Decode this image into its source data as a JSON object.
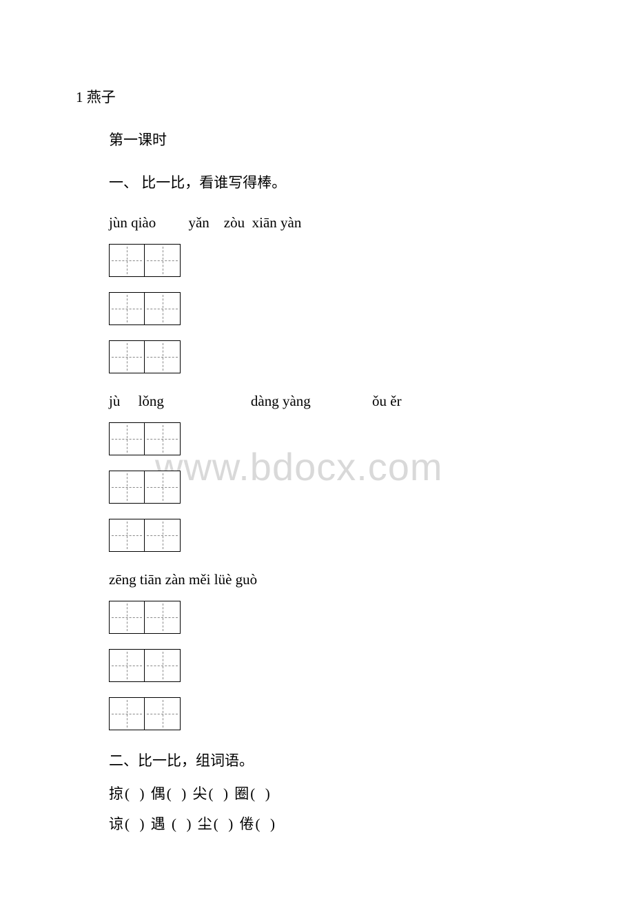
{
  "title": "1 燕子",
  "subtitle": "第一课时",
  "section1": {
    "instruction": "一、 比一比，看谁写得棒。",
    "pinyin_row1": "jùn qiào   yǎn zòu xiān yàn",
    "pinyin_row2": "jù  lǒng      dàng yàng     ǒu ěr",
    "pinyin_row3": "zēng tiān zàn měi lüè guò"
  },
  "section2": {
    "instruction": "二、比一比，组词语。",
    "line1": "掠( ) 偶( ) 尖( ) 圈( )",
    "line2": "谅( ) 遇 ( ) 尘( ) 倦( )"
  },
  "watermark": "www.bdocx.com"
}
